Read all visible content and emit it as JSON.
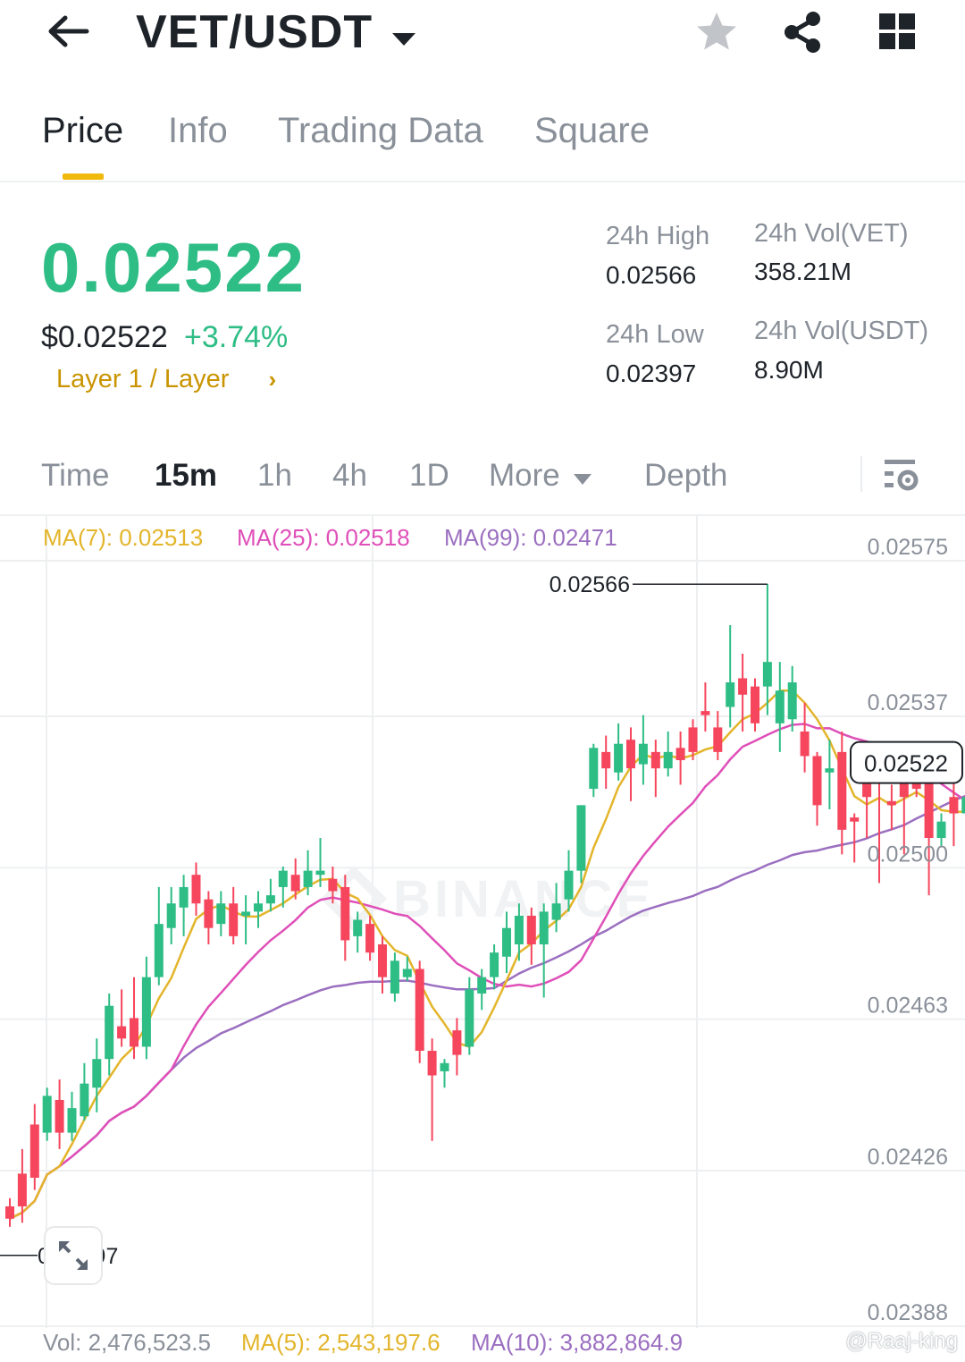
{
  "header": {
    "pair": "VET/USDT",
    "icons": [
      "back-arrow-icon",
      "caret-down-icon",
      "star-icon",
      "share-icon",
      "grid-icon"
    ]
  },
  "tabs": [
    {
      "label": "Price",
      "active": true
    },
    {
      "label": "Info",
      "active": false
    },
    {
      "label": "Trading Data",
      "active": false
    },
    {
      "label": "Square",
      "active": false
    }
  ],
  "price": {
    "last": "0.02522",
    "usd": "$0.02522",
    "change": "+3.74%",
    "category": "Layer 1 / Layer",
    "color_up": "#2ebd85"
  },
  "stats": {
    "high_label": "24h High",
    "high_value": "0.02566",
    "low_label": "24h Low",
    "low_value": "0.02397",
    "vol_base_label": "24h Vol(VET)",
    "vol_base_value": "358.21M",
    "vol_quote_label": "24h Vol(USDT)",
    "vol_quote_value": "8.90M"
  },
  "intervals": [
    {
      "label": "Time",
      "active": false
    },
    {
      "label": "15m",
      "active": true
    },
    {
      "label": "1h",
      "active": false
    },
    {
      "label": "4h",
      "active": false
    },
    {
      "label": "1D",
      "active": false
    },
    {
      "label": "More",
      "active": false
    },
    {
      "label": "Depth",
      "active": false
    }
  ],
  "ma_legend": {
    "ma7": "MA(7): 0.02513",
    "ma25": "MA(25): 0.02518",
    "ma99": "MA(99): 0.02471",
    "colors": {
      "ma7": "#e3b52b",
      "ma25": "#df4fb8",
      "ma99": "#9b6fc0"
    }
  },
  "volume_legend": {
    "vol": "Vol: 2,476,523.5",
    "ma5": "MA(5): 2,543,197.6",
    "ma10": "MA(10): 3,882,864.9"
  },
  "watermark": "@Raaj-king",
  "chart_data": {
    "type": "candlestick",
    "y_ticks": [
      "0.02575",
      "0.02537",
      "0.02500",
      "0.02463",
      "0.02426",
      "0.02388"
    ],
    "ylim": [
      0.02388,
      0.02575
    ],
    "high_marker": "0.02566",
    "low_marker": "0.02397",
    "last_price_marker": "0.02522",
    "watermark_text": "BINANCE",
    "colors": {
      "up": "#2ebd85",
      "down": "#f6465d",
      "grid": "#eeeff1"
    },
    "candles": [
      [
        0.02414,
        0.02411,
        0.02416,
        0.02409
      ],
      [
        0.02422,
        0.02414,
        0.02428,
        0.0241
      ],
      [
        0.02434,
        0.02421,
        0.02439,
        0.02418
      ],
      [
        0.02432,
        0.02441,
        0.02443,
        0.0243
      ],
      [
        0.0244,
        0.02432,
        0.02445,
        0.02428
      ],
      [
        0.02432,
        0.02438,
        0.02442,
        0.0243
      ],
      [
        0.02436,
        0.02444,
        0.02449,
        0.02435
      ],
      [
        0.02443,
        0.0245,
        0.02455,
        0.02437
      ],
      [
        0.0245,
        0.02463,
        0.02466,
        0.02446
      ],
      [
        0.02458,
        0.02455,
        0.02467,
        0.02453
      ],
      [
        0.0246,
        0.02453,
        0.0247,
        0.0245
      ],
      [
        0.02453,
        0.0247,
        0.02475,
        0.0245
      ],
      [
        0.0247,
        0.02483,
        0.02492,
        0.02468
      ],
      [
        0.02482,
        0.02488,
        0.02492,
        0.02478
      ],
      [
        0.02487,
        0.02492,
        0.02495,
        0.0248
      ],
      [
        0.02495,
        0.02488,
        0.02498,
        0.02485
      ],
      [
        0.02489,
        0.02482,
        0.02491,
        0.02478
      ],
      [
        0.02483,
        0.02488,
        0.02491,
        0.0248
      ],
      [
        0.02488,
        0.0248,
        0.02492,
        0.02478
      ],
      [
        0.02485,
        0.02486,
        0.0249,
        0.02478
      ],
      [
        0.02486,
        0.02488,
        0.02491,
        0.02482
      ],
      [
        0.02488,
        0.0249,
        0.02494,
        0.02486
      ],
      [
        0.02492,
        0.02496,
        0.02497,
        0.02487
      ],
      [
        0.02495,
        0.02491,
        0.02499,
        0.02489
      ],
      [
        0.02492,
        0.02496,
        0.02501,
        0.0249
      ],
      [
        0.02495,
        0.02496,
        0.02504,
        0.02492
      ],
      [
        0.02494,
        0.02491,
        0.02497,
        0.02488
      ],
      [
        0.02492,
        0.02479,
        0.02495,
        0.02474
      ],
      [
        0.0248,
        0.02484,
        0.02486,
        0.02476
      ],
      [
        0.02483,
        0.02476,
        0.02485,
        0.02474
      ],
      [
        0.02478,
        0.0247,
        0.0248,
        0.02466
      ],
      [
        0.02466,
        0.02474,
        0.02476,
        0.02464
      ],
      [
        0.0247,
        0.02472,
        0.02475,
        0.02469
      ],
      [
        0.02472,
        0.02452,
        0.02474,
        0.02449
      ],
      [
        0.02452,
        0.02446,
        0.02455,
        0.0243
      ],
      [
        0.02447,
        0.02449,
        0.0245,
        0.02443
      ],
      [
        0.02457,
        0.02451,
        0.0246,
        0.02446
      ],
      [
        0.02453,
        0.02467,
        0.0247,
        0.02451
      ],
      [
        0.02466,
        0.0247,
        0.02472,
        0.02462
      ],
      [
        0.0247,
        0.02476,
        0.02478,
        0.02467
      ],
      [
        0.02475,
        0.02482,
        0.02486,
        0.02471
      ],
      [
        0.02478,
        0.02485,
        0.02488,
        0.02474
      ],
      [
        0.02485,
        0.02478,
        0.02487,
        0.02473
      ],
      [
        0.02478,
        0.02486,
        0.02488,
        0.02465
      ],
      [
        0.02484,
        0.02488,
        0.02493,
        0.02481
      ],
      [
        0.02489,
        0.02496,
        0.02501,
        0.02486
      ],
      [
        0.02496,
        0.02512,
        0.02512,
        0.02493
      ],
      [
        0.02516,
        0.02526,
        0.02527,
        0.02514
      ],
      [
        0.02525,
        0.02521,
        0.02529,
        0.02516
      ],
      [
        0.0252,
        0.02527,
        0.02532,
        0.02518
      ],
      [
        0.02528,
        0.02521,
        0.02531,
        0.02513
      ],
      [
        0.02522,
        0.02527,
        0.02534,
        0.02517
      ],
      [
        0.02525,
        0.02521,
        0.02528,
        0.02514
      ],
      [
        0.02521,
        0.02525,
        0.0253,
        0.02519
      ],
      [
        0.02526,
        0.02523,
        0.0253,
        0.02517
      ],
      [
        0.02531,
        0.02525,
        0.02533,
        0.02523
      ],
      [
        0.02535,
        0.02534,
        0.02542,
        0.0253
      ],
      [
        0.02531,
        0.02525,
        0.02535,
        0.02523
      ],
      [
        0.02536,
        0.02542,
        0.02556,
        0.02531
      ],
      [
        0.02543,
        0.02539,
        0.02549,
        0.0253
      ],
      [
        0.02541,
        0.02532,
        0.02543,
        0.0253
      ],
      [
        0.02541,
        0.02547,
        0.02566,
        0.02534
      ],
      [
        0.02532,
        0.0254,
        0.02547,
        0.02525
      ],
      [
        0.02533,
        0.02542,
        0.02546,
        0.0253
      ],
      [
        0.0253,
        0.02524,
        0.02537,
        0.0252
      ],
      [
        0.02524,
        0.02512,
        0.02525,
        0.02507
      ],
      [
        0.0252,
        0.02521,
        0.02528,
        0.02511
      ],
      [
        0.02525,
        0.02506,
        0.0253,
        0.025
      ],
      [
        0.02509,
        0.02508,
        0.0251,
        0.02498
      ],
      [
        0.0252,
        0.02514,
        0.02522,
        0.02504
      ],
      [
        0.02521,
        0.0252,
        0.02525,
        0.02493
      ],
      [
        0.02513,
        0.02512,
        0.02517,
        0.02506
      ],
      [
        0.02518,
        0.02514,
        0.02524,
        0.025
      ],
      [
        0.0252,
        0.02516,
        0.02524,
        0.02514
      ],
      [
        0.02518,
        0.02504,
        0.0252,
        0.0249
      ],
      [
        0.02504,
        0.02508,
        0.0251,
        0.02502
      ],
      [
        0.02514,
        0.0251,
        0.02526,
        0.02502
      ],
      [
        0.0251,
        0.02514,
        0.02516,
        0.02504
      ],
      [
        0.02512,
        0.02522,
        0.02526,
        0.02509
      ]
    ]
  }
}
